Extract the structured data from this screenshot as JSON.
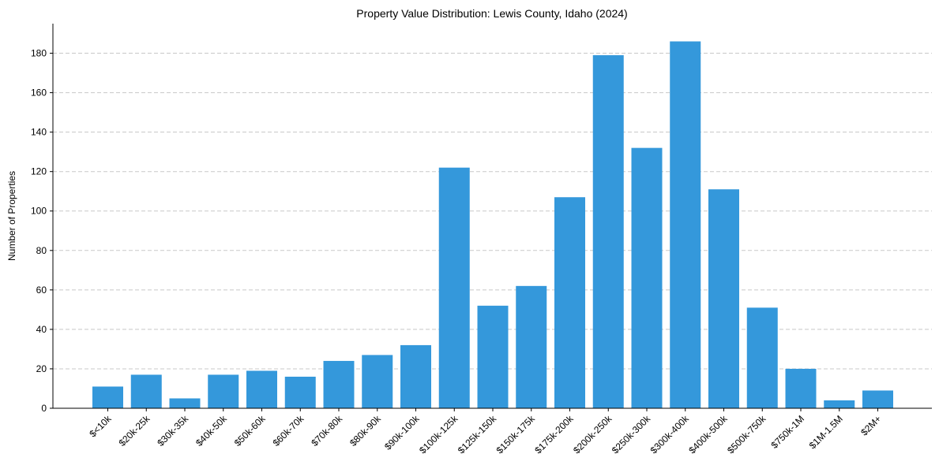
{
  "chart_data": {
    "type": "bar",
    "title": "Property Value Distribution: Lewis County, Idaho (2024)",
    "xlabel": "",
    "ylabel": "Number of Properties",
    "categories": [
      "$<10k",
      "$20k-25k",
      "$30k-35k",
      "$40k-50k",
      "$50k-60k",
      "$60k-70k",
      "$70k-80k",
      "$80k-90k",
      "$90k-100k",
      "$100k-125k",
      "$125k-150k",
      "$150k-175k",
      "$175k-200k",
      "$200k-250k",
      "$250k-300k",
      "$300k-400k",
      "$400k-500k",
      "$500k-750k",
      "$750k-1M",
      "$1M-1.5M",
      "$2M+"
    ],
    "values": [
      11,
      17,
      5,
      17,
      19,
      16,
      24,
      27,
      32,
      122,
      52,
      62,
      107,
      179,
      132,
      186,
      111,
      51,
      20,
      4,
      9
    ],
    "ylim": [
      0,
      195
    ],
    "yticks": [
      0,
      20,
      40,
      60,
      80,
      100,
      120,
      140,
      160,
      180
    ],
    "grid": true,
    "bar_color": "#3498db"
  }
}
